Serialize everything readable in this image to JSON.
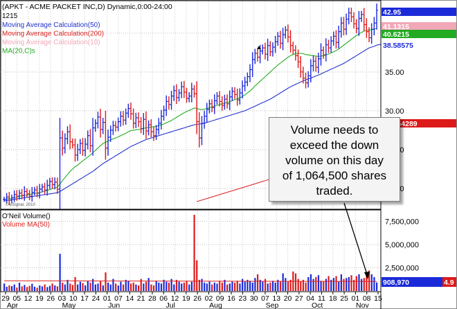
{
  "header": {
    "title": "(APKT - ACME PACKET INC,D) Dynamic,0:00-24:00",
    "code": "1215"
  },
  "legend_price": [
    {
      "label": "Moving Average Calculation(50)",
      "color": "#2233cc"
    },
    {
      "label": "Moving Average Calculation(200)",
      "color": "#dd2222"
    },
    {
      "label": "Moving Average Calculation(10)",
      "color": "#f0a8b8"
    },
    {
      "label": "MA(20,C)s",
      "color": "#22aa22"
    }
  ],
  "legend_volume": [
    {
      "label": "O'Neil Volume()",
      "color": "#000000"
    },
    {
      "label": "Volume MA(50)",
      "color": "#dd2222"
    }
  ],
  "watermark": "© eSignal, 2010",
  "callout": {
    "lines": [
      "Volume needs to",
      "exceed the down",
      "volume on this day",
      "of 1,064,500 shares",
      "traded."
    ]
  },
  "colors": {
    "up": "#1a2ad8",
    "down": "#dd1a1a",
    "ma50": "#2233cc",
    "ma20": "#22aa22",
    "ma200": "#dd2222",
    "ma10": "#f0a8b8"
  },
  "chart_data": {
    "type": "bar",
    "price_axis": {
      "min": 17.5,
      "max": 44,
      "ticks": [
        "20.00",
        "25.00",
        "30.00",
        "35.00",
        "40.00"
      ]
    },
    "price_tags": [
      {
        "label": "42.95",
        "value": 42.95,
        "bg": "#1a2ad8",
        "fg": "#ffffff"
      },
      {
        "label": "41.1315",
        "value": 41.13,
        "bg": "#f0a8b8",
        "fg": "#ffffff"
      },
      {
        "label": "40.6215",
        "value": 40.62,
        "bg": "#22aa22",
        "fg": "#ffffff"
      },
      {
        "label": "38.58575",
        "value": 38.59,
        "bg": "#ffffff",
        "fg": "#1a2ad8"
      },
      {
        "label": "28.564289",
        "value": 28.56,
        "bg": "#dd1a1a",
        "fg": "#ffffff"
      }
    ],
    "volume_axis": {
      "min": 0,
      "max": 8500000,
      "ticks": [
        "2,500,000",
        "5,000,000",
        "7,500,000"
      ]
    },
    "volume_tags": [
      {
        "label": "908,970",
        "bg": "#1a2ad8",
        "fg": "#ffffff"
      },
      {
        "label": "4.9",
        "bg": "#dd1a1a",
        "fg": "#ffffff"
      }
    ],
    "day_labels": [
      "29",
      "05",
      "12",
      "19",
      "26",
      "03",
      "10",
      "17",
      "24",
      "01",
      "07",
      "14",
      "21",
      "28",
      "06",
      "12",
      "19",
      "26",
      "02",
      "09",
      "16",
      "23",
      "30",
      "07",
      "13",
      "20",
      "27",
      "04",
      "11",
      "18",
      "25",
      "01",
      "08",
      "15"
    ],
    "month_labels": [
      "Apr",
      "May",
      "Jun",
      "Jul",
      "Aug",
      "Sep",
      "Oct",
      "Nov"
    ],
    "closes": [
      18.6,
      18.9,
      18.5,
      18.8,
      19.2,
      19.0,
      19.4,
      19.1,
      19.6,
      19.3,
      19.0,
      19.5,
      19.8,
      19.4,
      19.9,
      20.2,
      19.8,
      20.4,
      20.9,
      20.5,
      20.8,
      19.9,
      26.5,
      25.2,
      26.4,
      27.3,
      26.0,
      25.6,
      24.3,
      25.0,
      25.8,
      24.9,
      25.7,
      26.8,
      25.5,
      27.8,
      28.4,
      29.2,
      27.6,
      28.5,
      25.2,
      26.6,
      27.5,
      28.1,
      27.9,
      28.6,
      29.3,
      28.8,
      29.7,
      30.3,
      29.6,
      28.4,
      29.1,
      28.6,
      27.7,
      28.9,
      27.4,
      28.2,
      27.3,
      26.8,
      27.6,
      28.4,
      29.3,
      30.1,
      31.2,
      30.8,
      31.9,
      32.6,
      31.7,
      32.3,
      33.1,
      32.4,
      31.6,
      31.9,
      32.8,
      32.2,
      28.6,
      26.5,
      28.4,
      29.3,
      30.2,
      30.9,
      30.4,
      31.3,
      31.9,
      31.2,
      30.7,
      31.5,
      30.9,
      31.8,
      32.5,
      32.1,
      31.4,
      32.3,
      33.2,
      33.7,
      34.4,
      35.3,
      36.6,
      37.4,
      36.9,
      37.7,
      38.1,
      37.3,
      38.4,
      37.6,
      38.2,
      38.9,
      39.6,
      38.7,
      39.8,
      40.4,
      39.5,
      38.4,
      37.8,
      37.1,
      36.3,
      35.0,
      34.2,
      33.6,
      34.5,
      35.8,
      36.4,
      35.6,
      36.7,
      37.8,
      37.2,
      38.5,
      38.1,
      39.0,
      39.6,
      38.8,
      40.2,
      41.3,
      40.5,
      41.8,
      42.6,
      42.1,
      41.2,
      40.6,
      41.9,
      42.4,
      41.1,
      40.2,
      39.4,
      40.5,
      41.3,
      42.95
    ],
    "ma20": [
      18.6,
      18.65,
      18.7,
      18.75,
      18.8,
      18.9,
      19.0,
      19.05,
      19.1,
      19.15,
      19.2,
      19.3,
      19.35,
      19.4,
      19.45,
      19.55,
      19.65,
      19.75,
      19.85,
      19.95,
      20.05,
      20.15,
      20.6,
      21.0,
      21.4,
      21.8,
      22.2,
      22.5,
      22.8,
      23.0,
      23.3,
      23.55,
      23.8,
      24.05,
      24.3,
      24.6,
      24.9,
      25.2,
      25.5,
      25.8,
      25.95,
      26.1,
      26.25,
      26.4,
      26.5,
      26.65,
      26.8,
      26.95,
      27.1,
      27.3,
      27.45,
      27.5,
      27.55,
      27.6,
      27.65,
      27.75,
      27.8,
      27.85,
      27.9,
      27.95,
      28.0,
      28.1,
      28.2,
      28.3,
      28.45,
      28.6,
      28.75,
      28.95,
      29.15,
      29.35,
      29.55,
      29.75,
      29.9,
      30.05,
      30.2,
      30.35,
      30.3,
      30.2,
      30.15,
      30.2,
      30.3,
      30.4,
      30.5,
      30.6,
      30.7,
      30.8,
      30.9,
      31.0,
      31.05,
      31.15,
      31.3,
      31.45,
      31.55,
      31.65,
      31.85,
      32.05,
      32.3,
      32.55,
      32.85,
      33.2,
      33.5,
      33.8,
      34.1,
      34.4,
      34.7,
      35.0,
      35.3,
      35.6,
      35.9,
      36.15,
      36.4,
      36.65,
      36.9,
      37.1,
      37.25,
      37.35,
      37.4,
      37.4,
      37.35,
      37.25,
      37.2,
      37.15,
      37.1,
      37.05,
      37.0,
      37.05,
      37.1,
      37.2,
      37.3,
      37.45,
      37.6,
      37.75,
      37.95,
      38.2,
      38.45,
      38.7,
      38.95,
      39.2,
      39.45,
      39.7,
      39.9,
      40.1,
      40.25,
      40.35,
      40.4,
      40.45,
      40.5,
      40.62
    ],
    "ma50": [
      18.4,
      18.45,
      18.5,
      18.55,
      18.6,
      18.65,
      18.7,
      18.75,
      18.8,
      18.85,
      18.9,
      18.95,
      19.0,
      19.05,
      19.1,
      19.15,
      19.2,
      19.25,
      19.3,
      19.35,
      19.4,
      19.45,
      19.6,
      19.8,
      20.0,
      20.2,
      20.4,
      20.6,
      20.8,
      21.0,
      21.2,
      21.4,
      21.6,
      21.8,
      22.0,
      22.2,
      22.45,
      22.7,
      22.95,
      23.2,
      23.4,
      23.6,
      23.8,
      24.0,
      24.2,
      24.4,
      24.6,
      24.8,
      25.0,
      25.2,
      25.4,
      25.55,
      25.7,
      25.85,
      26.0,
      26.15,
      26.3,
      26.4,
      26.5,
      26.6,
      26.7,
      26.8,
      26.9,
      27.0,
      27.1,
      27.2,
      27.3,
      27.4,
      27.5,
      27.6,
      27.7,
      27.8,
      27.9,
      28.0,
      28.1,
      28.2,
      28.25,
      28.3,
      28.35,
      28.4,
      28.5,
      28.6,
      28.7,
      28.8,
      28.9,
      29.0,
      29.1,
      29.2,
      29.3,
      29.4,
      29.5,
      29.6,
      29.7,
      29.8,
      29.9,
      30.0,
      30.15,
      30.3,
      30.45,
      30.6,
      30.75,
      30.9,
      31.05,
      31.2,
      31.35,
      31.5,
      31.7,
      31.9,
      32.1,
      32.3,
      32.5,
      32.7,
      32.9,
      33.1,
      33.25,
      33.4,
      33.55,
      33.7,
      33.85,
      34.0,
      34.1,
      34.2,
      34.35,
      34.5,
      34.6,
      34.75,
      34.9,
      35.05,
      35.2,
      35.35,
      35.5,
      35.65,
      35.8,
      35.95,
      36.1,
      36.3,
      36.5,
      36.7,
      36.9,
      37.1,
      37.3,
      37.5,
      37.7,
      37.9,
      38.1,
      38.2,
      38.3,
      38.45,
      38.52,
      38.59
    ],
    "ma200_segment": {
      "start_index": 76,
      "end_index": 109,
      "start_value": 18.3,
      "end_value": 21.6
    },
    "volume_k": [
      800,
      450,
      600,
      520,
      700,
      380,
      900,
      500,
      650,
      420,
      550,
      780,
      460,
      350,
      600,
      500,
      700,
      420,
      550,
      800,
      600,
      500,
      4000,
      900,
      700,
      1200,
      800,
      650,
      1500,
      700,
      1000,
      850,
      600,
      1100,
      900,
      1300,
      700,
      800,
      1100,
      600,
      2000,
      900,
      700,
      1300,
      800,
      600,
      1000,
      700,
      1200,
      1100,
      800,
      900,
      700,
      600,
      1300,
      800,
      1000,
      1400,
      700,
      600,
      1100,
      900,
      800,
      1200,
      1000,
      900,
      1300,
      700,
      1200,
      1000,
      800,
      900,
      1100,
      700,
      1000,
      8200,
      3300,
      1200,
      1300,
      900,
      800,
      1000,
      700,
      900,
      800,
      1100,
      900,
      1200,
      700,
      800,
      1000,
      900,
      1100,
      800,
      1300,
      1000,
      1200,
      1100,
      900,
      1400,
      1800,
      1200,
      1000,
      1300,
      800,
      900,
      1100,
      900,
      1200,
      1000,
      1900,
      1400,
      1000,
      1200,
      2100,
      1900,
      1300,
      1000,
      1200,
      900,
      1500,
      1800,
      1300,
      1500,
      1700,
      1100,
      1000,
      1300,
      1600,
      1200,
      1400,
      1600,
      1000,
      1800,
      1300,
      1400,
      1500,
      1700,
      1200,
      1600,
      1800,
      1300,
      1400,
      1700,
      2200,
      1800,
      1500,
      909
    ],
    "volume_ma_k": 1100
  }
}
